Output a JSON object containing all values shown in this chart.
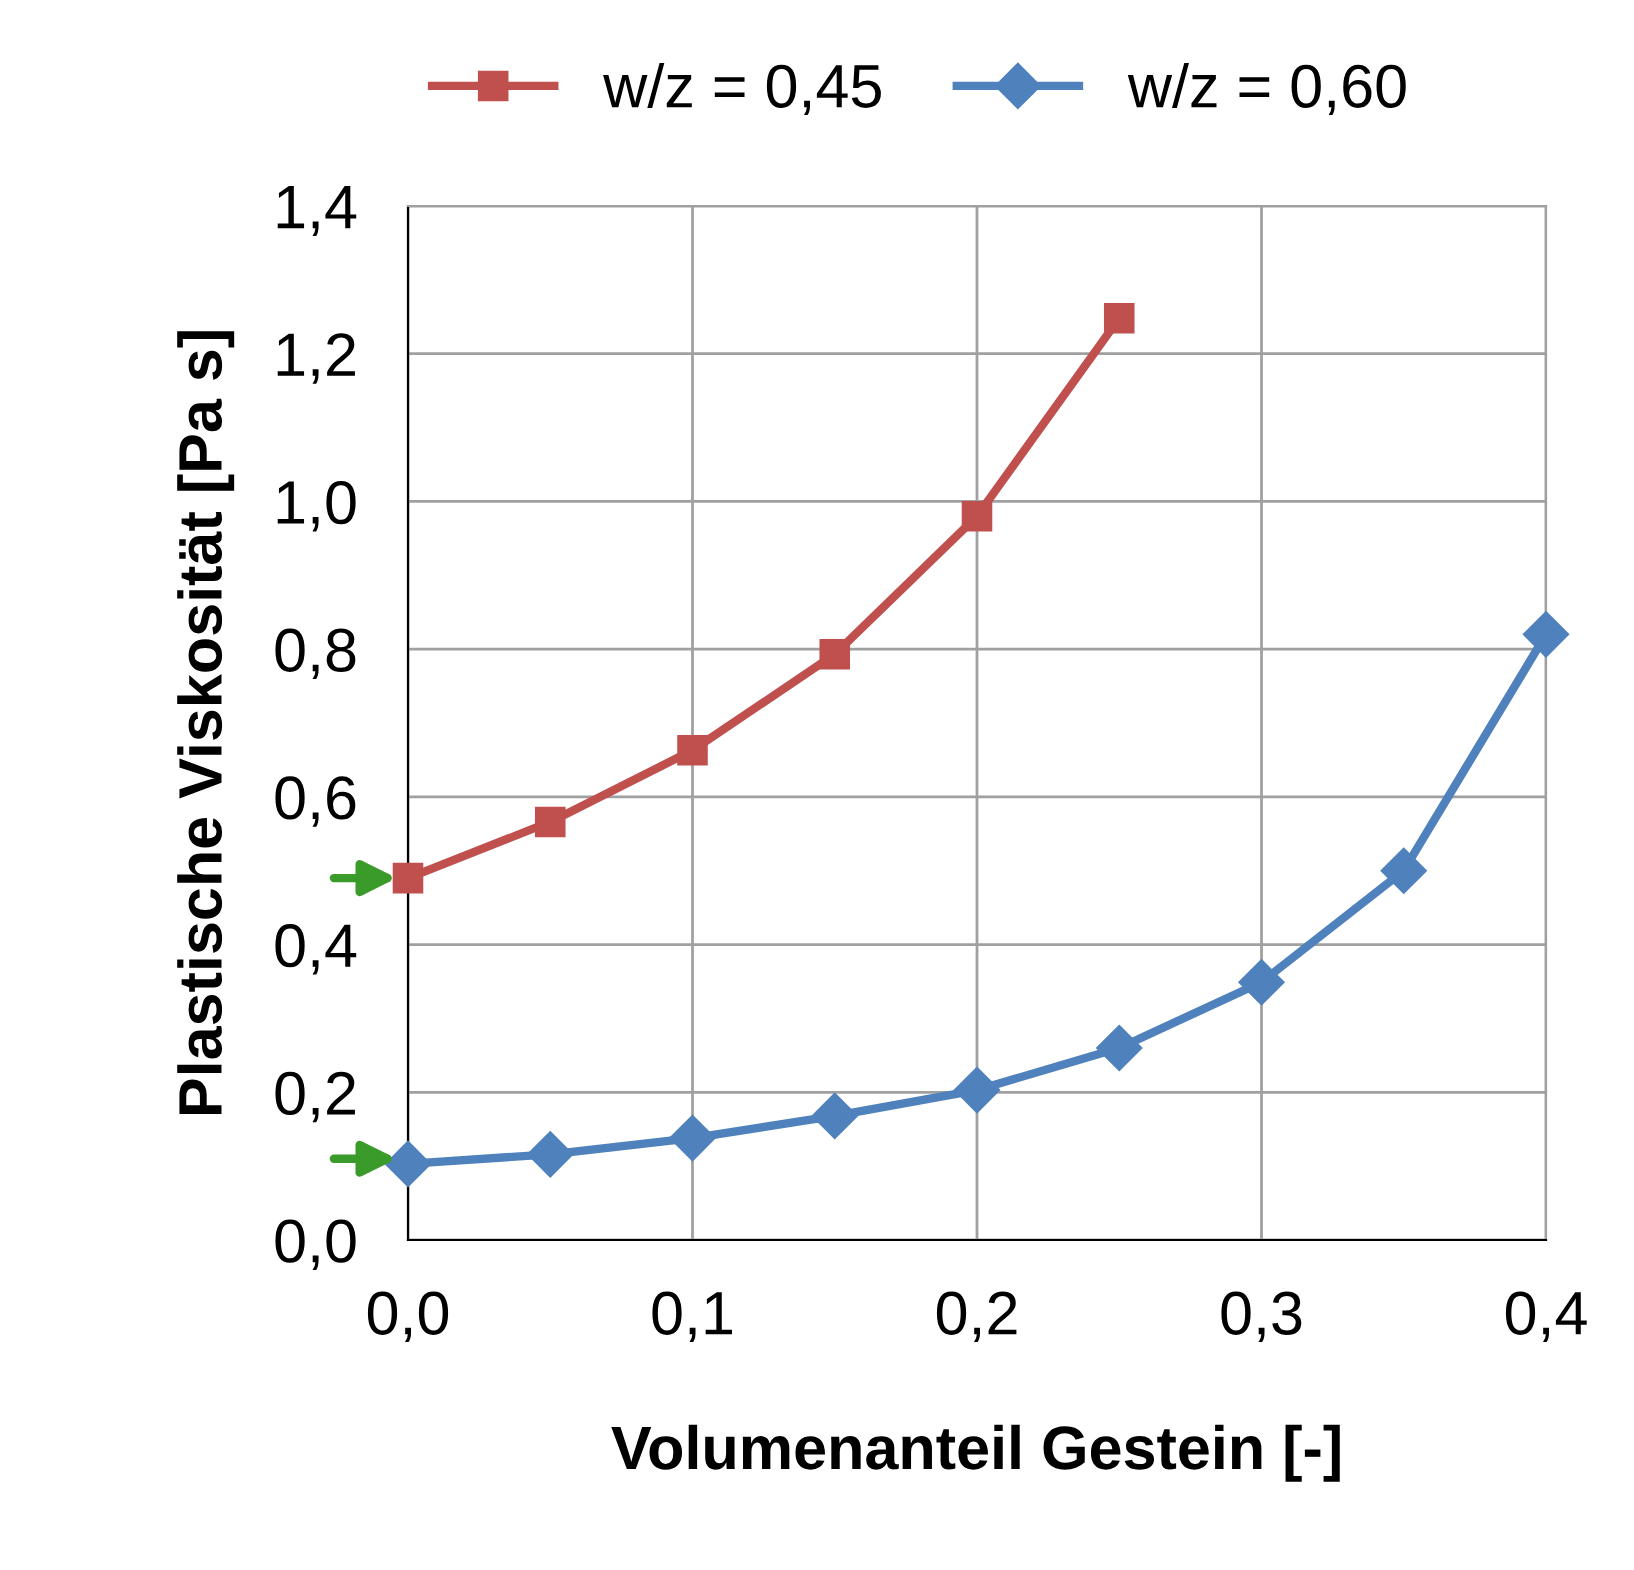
{
  "chart_data": {
    "type": "line",
    "xlabel": "Volumenanteil Gestein [-]",
    "ylabel": "Plastische Viskosität [Pa s]",
    "x": [
      0.0,
      0.05,
      0.1,
      0.15,
      0.2,
      0.25,
      0.3,
      0.35,
      0.4
    ],
    "series": [
      {
        "name": "w/z = 0,45",
        "color": "#c0504d",
        "marker": "square",
        "values": [
          0.49,
          0.566,
          0.663,
          0.793,
          0.98,
          1.248,
          null,
          null,
          null
        ]
      },
      {
        "name": "w/z = 0,60",
        "color": "#4f81bd",
        "marker": "diamond",
        "values": [
          0.103,
          0.116,
          0.138,
          0.168,
          0.203,
          0.26,
          0.349,
          0.5,
          0.82
        ]
      }
    ],
    "xlim": [
      0.0,
      0.4
    ],
    "xticks": [
      {
        "value": 0.0,
        "label": "0,0"
      },
      {
        "value": 0.1,
        "label": "0,1"
      },
      {
        "value": 0.2,
        "label": "0,2"
      },
      {
        "value": 0.3,
        "label": "0,3"
      },
      {
        "value": 0.4,
        "label": "0,4"
      }
    ],
    "ylim": [
      0.0,
      1.4
    ],
    "yticks": [
      {
        "value": 0.0,
        "label": "0,0"
      },
      {
        "value": 0.2,
        "label": "0,2"
      },
      {
        "value": 0.4,
        "label": "0,4"
      },
      {
        "value": 0.6,
        "label": "0,6"
      },
      {
        "value": 0.8,
        "label": "0,8"
      },
      {
        "value": 1.0,
        "label": "1,0"
      },
      {
        "value": 1.2,
        "label": "1,2"
      },
      {
        "value": 1.4,
        "label": "1,4"
      }
    ],
    "grid": true,
    "legend": "top",
    "line_style": "solid"
  }
}
